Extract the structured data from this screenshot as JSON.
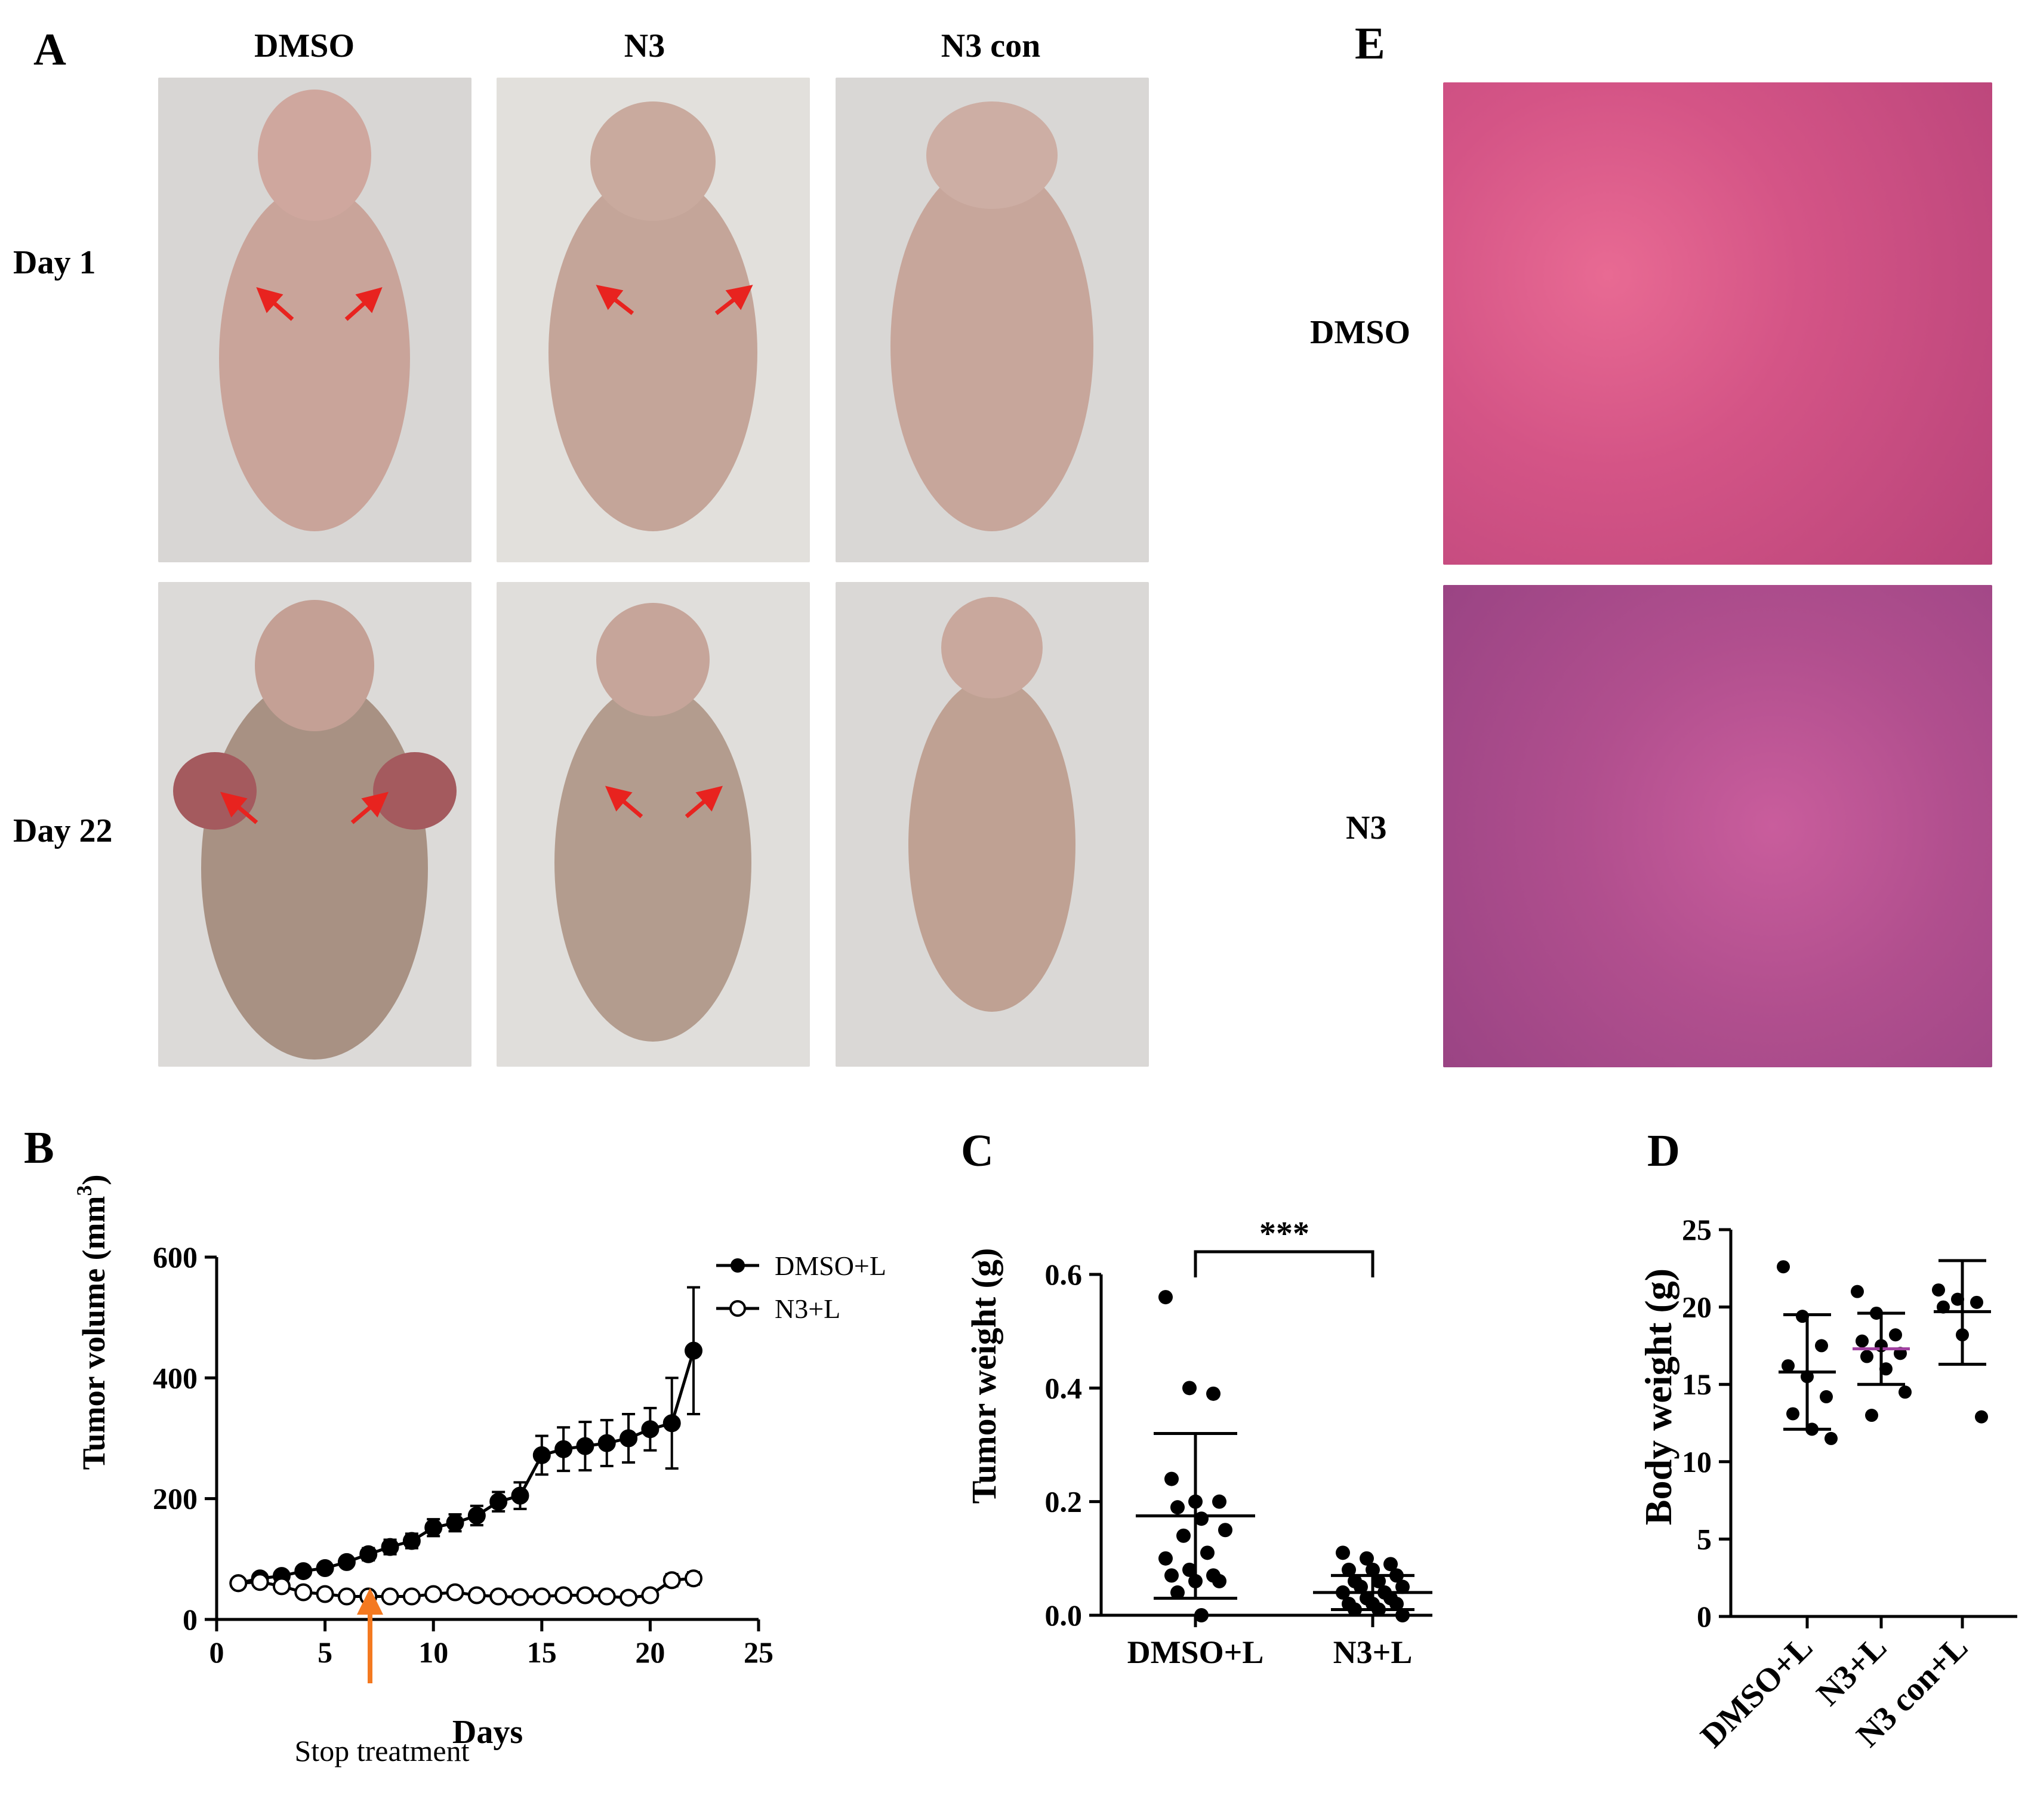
{
  "panel_labels": {
    "a": "A",
    "b": "B",
    "c": "C",
    "d": "D",
    "e": "E"
  },
  "panel_a": {
    "columns": [
      "DMSO",
      "N3",
      "N3 con"
    ],
    "rows": [
      "Day 1",
      "Day 22"
    ],
    "arrow_color": "#e8231f"
  },
  "panel_e": {
    "rows": [
      "DMSO",
      "N3"
    ]
  },
  "annotations": {
    "stop_treatment": "Stop treatment",
    "stop_arrow_color": "#f47920",
    "significance": "***"
  },
  "chart_data": [
    {
      "id": "B",
      "type": "line",
      "xlabel": "Days",
      "ylabel": "Tumor volume (mm",
      "ylabel_sup": "3",
      "ylabel_close": ")",
      "xlim": [
        0,
        25
      ],
      "ylim": [
        0,
        600
      ],
      "xticks": [
        0,
        5,
        10,
        15,
        20,
        25
      ],
      "yticks": [
        0,
        200,
        400,
        600
      ],
      "legend_position": "top-right",
      "series": [
        {
          "name": "DMSO+L",
          "marker": "filled-circle",
          "x": [
            1,
            2,
            3,
            4,
            5,
            6,
            7,
            8,
            9,
            10,
            11,
            12,
            13,
            14,
            15,
            16,
            17,
            18,
            19,
            20,
            21,
            22
          ],
          "y": [
            60,
            68,
            72,
            80,
            85,
            95,
            108,
            120,
            130,
            152,
            160,
            172,
            195,
            205,
            272,
            282,
            287,
            292,
            300,
            315,
            325,
            445
          ],
          "err": [
            6,
            6,
            6,
            6,
            7,
            8,
            10,
            12,
            12,
            14,
            14,
            16,
            16,
            22,
            32,
            36,
            40,
            38,
            40,
            35,
            75,
            105
          ]
        },
        {
          "name": "N3+L",
          "marker": "open-circle",
          "x": [
            1,
            2,
            3,
            4,
            5,
            6,
            7,
            8,
            9,
            10,
            11,
            12,
            13,
            14,
            15,
            16,
            17,
            18,
            19,
            20,
            21,
            22
          ],
          "y": [
            60,
            62,
            55,
            45,
            42,
            38,
            38,
            38,
            38,
            42,
            45,
            40,
            38,
            37,
            38,
            40,
            40,
            38,
            36,
            40,
            65,
            68
          ],
          "err": [
            4,
            4,
            4,
            4,
            3,
            3,
            3,
            3,
            3,
            4,
            4,
            3,
            3,
            3,
            3,
            3,
            3,
            3,
            3,
            5,
            10,
            10
          ]
        }
      ]
    },
    {
      "id": "C",
      "type": "scatter",
      "ylabel": "Tumor weight (g)",
      "categories": [
        "DMSO+L",
        "N3+L"
      ],
      "ylim": [
        0,
        0.6
      ],
      "yticks": [
        "0.0",
        "0.2",
        "0.4",
        "0.6"
      ],
      "groups": [
        {
          "category": "DMSO+L",
          "mean": 0.175,
          "sd_low": 0.03,
          "sd_high": 0.32,
          "points": [
            0.56,
            0.4,
            0.39,
            0.24,
            0.2,
            0.2,
            0.19,
            0.17,
            0.15,
            0.14,
            0.11,
            0.1,
            0.08,
            0.07,
            0.07,
            0.06,
            0.06,
            0.04,
            0.0
          ]
        },
        {
          "category": "N3+L",
          "mean": 0.04,
          "sd_low": 0.01,
          "sd_high": 0.07,
          "points": [
            0.11,
            0.1,
            0.09,
            0.08,
            0.08,
            0.07,
            0.06,
            0.06,
            0.05,
            0.05,
            0.04,
            0.04,
            0.03,
            0.03,
            0.02,
            0.02,
            0.02,
            0.01,
            0.01,
            0.0
          ]
        }
      ]
    },
    {
      "id": "D",
      "type": "scatter",
      "ylabel": "Body weight (g)",
      "categories": [
        "DMSO+L",
        "N3+L",
        "N3 con+L"
      ],
      "ylim": [
        0,
        25
      ],
      "yticks": [
        0,
        5,
        10,
        15,
        20,
        25
      ],
      "mean_line_colors": [
        "#000000",
        "#a040a0",
        "#000000"
      ],
      "groups": [
        {
          "category": "DMSO+L",
          "mean": 15.8,
          "sd_low": 12.1,
          "sd_high": 19.5,
          "points": [
            22.6,
            19.4,
            17.5,
            16.2,
            15.5,
            14.2,
            13.1,
            12.1,
            11.5
          ]
        },
        {
          "category": "N3+L",
          "mean": 17.3,
          "sd_low": 15.0,
          "sd_high": 19.6,
          "points": [
            21.0,
            19.6,
            18.2,
            17.8,
            17.5,
            17.0,
            16.8,
            16.0,
            14.5,
            13.0
          ]
        },
        {
          "category": "N3 con+L",
          "mean": 19.7,
          "sd_low": 16.3,
          "sd_high": 23.0,
          "points": [
            21.1,
            20.5,
            20.3,
            20.0,
            18.2,
            12.9
          ]
        }
      ]
    }
  ]
}
